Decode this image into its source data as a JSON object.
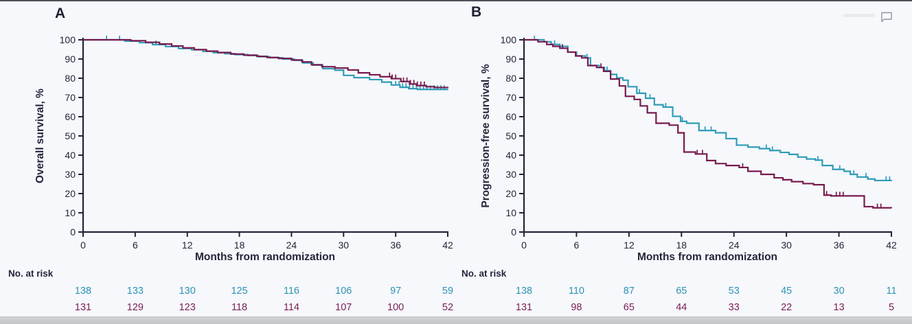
{
  "colors": {
    "teal_curve": "#2f9cb7",
    "maroon_curve": "#771a4e",
    "teal_text": "#2e93b4",
    "maroon_text": "#7c2057",
    "axis": "#23253a",
    "background": "#f6f8fb"
  },
  "icons": {
    "comment": "comment-bubble-icon"
  },
  "chart_data": [
    {
      "type": "line",
      "subtype": "kaplan-meier-step",
      "panel_label": "A",
      "ylabel": "Overall survival, %",
      "xlabel": "Months from randomization",
      "risk_label": "No. at risk",
      "xlim": [
        0,
        42
      ],
      "ylim": [
        0,
        100
      ],
      "xticks": [
        0,
        6,
        12,
        18,
        24,
        30,
        36,
        42
      ],
      "yticks": [
        0,
        10,
        20,
        30,
        40,
        50,
        60,
        70,
        80,
        90,
        100
      ],
      "grid": false,
      "legend": "none",
      "series": [
        {
          "name": "arm-teal",
          "color": "#2f9cb7",
          "steps": [
            [
              0,
              100
            ],
            [
              4.8,
              99.3
            ],
            [
              6.5,
              98.5
            ],
            [
              8,
              97.5
            ],
            [
              9.5,
              96.5
            ],
            [
              11,
              95.5
            ],
            [
              12.5,
              94.8
            ],
            [
              13.8,
              94
            ],
            [
              15,
              93.3
            ],
            [
              16.3,
              92.8
            ],
            [
              17.5,
              92.3
            ],
            [
              19,
              91.8
            ],
            [
              20.2,
              91.2
            ],
            [
              21.5,
              90.7
            ],
            [
              23,
              90
            ],
            [
              24.3,
              89.3
            ],
            [
              25.3,
              88
            ],
            [
              26.5,
              86.8
            ],
            [
              27.6,
              85
            ],
            [
              29,
              84.2
            ],
            [
              30,
              81.5
            ],
            [
              31.2,
              80.3
            ],
            [
              33,
              79.3
            ],
            [
              34.4,
              78
            ],
            [
              35.5,
              76.5
            ],
            [
              36.5,
              75.3
            ],
            [
              37.5,
              74.6
            ],
            [
              38.5,
              74.2
            ],
            [
              42,
              74
            ]
          ],
          "censors": [
            2.7,
            4.2,
            8.4,
            36.0,
            36.4,
            36.8,
            37.2,
            37.6,
            38.0,
            38.4,
            38.8,
            39.2,
            39.6,
            40.0,
            40.4,
            40.8,
            41.2,
            41.6
          ]
        },
        {
          "name": "arm-maroon",
          "color": "#771a4e",
          "steps": [
            [
              0,
              100
            ],
            [
              5.5,
              99.5
            ],
            [
              7.2,
              98.7
            ],
            [
              8.8,
              97.8
            ],
            [
              10.2,
              96.8
            ],
            [
              11.5,
              95.8
            ],
            [
              12.8,
              94.9
            ],
            [
              14.2,
              94.1
            ],
            [
              15.5,
              93.4
            ],
            [
              17,
              92.6
            ],
            [
              18.5,
              92
            ],
            [
              20,
              91.4
            ],
            [
              21.2,
              90.8
            ],
            [
              22.5,
              90.3
            ],
            [
              24,
              89.5
            ],
            [
              25.2,
              88.5
            ],
            [
              26.3,
              87
            ],
            [
              27.5,
              86
            ],
            [
              29,
              85.3
            ],
            [
              30.5,
              84.3
            ],
            [
              31.7,
              82.8
            ],
            [
              33,
              81.8
            ],
            [
              34.2,
              80.8
            ],
            [
              35.5,
              79.8
            ],
            [
              36.6,
              78.3
            ],
            [
              37.6,
              77
            ],
            [
              38.4,
              76.2
            ],
            [
              39.5,
              75.6
            ],
            [
              40.5,
              75.2
            ],
            [
              42,
              75
            ]
          ],
          "censors": [
            35.3,
            35.6,
            36.0,
            36.9,
            37.3,
            37.7,
            38.1,
            38.5,
            38.9,
            39.3
          ]
        }
      ],
      "no_at_risk": {
        "times": [
          0,
          6,
          12,
          18,
          24,
          30,
          36,
          42
        ],
        "rows": [
          {
            "name": "arm-teal",
            "color": "#2e93b4",
            "values": [
              138,
              133,
              130,
              125,
              116,
              106,
              97,
              59
            ]
          },
          {
            "name": "arm-maroon",
            "color": "#7c2057",
            "values": [
              131,
              129,
              123,
              118,
              114,
              107,
              100,
              52
            ]
          }
        ]
      }
    },
    {
      "type": "line",
      "subtype": "kaplan-meier-step",
      "panel_label": "B",
      "ylabel": "Progression-free survival, %",
      "xlabel": "Months from randomization",
      "risk_label": "No. at risk",
      "xlim": [
        0,
        42
      ],
      "ylim": [
        0,
        100
      ],
      "xticks": [
        0,
        6,
        12,
        18,
        24,
        30,
        36,
        42
      ],
      "yticks": [
        0,
        10,
        20,
        30,
        40,
        50,
        60,
        70,
        80,
        90,
        100
      ],
      "grid": false,
      "legend": "none",
      "series": [
        {
          "name": "arm-teal",
          "color": "#2f9cb7",
          "steps": [
            [
              0,
              100
            ],
            [
              2.3,
              99
            ],
            [
              3.1,
              97.6
            ],
            [
              4.1,
              96.6
            ],
            [
              5,
              93.6
            ],
            [
              6,
              91.6
            ],
            [
              7,
              90.6
            ],
            [
              7.6,
              86.6
            ],
            [
              8.6,
              85.6
            ],
            [
              9.2,
              84
            ],
            [
              9.9,
              82
            ],
            [
              10.6,
              80.2
            ],
            [
              11.3,
              79
            ],
            [
              11.9,
              75.6
            ],
            [
              12.9,
              72.2
            ],
            [
              13.9,
              69.6
            ],
            [
              14.9,
              66.2
            ],
            [
              15.9,
              65
            ],
            [
              17,
              60.2
            ],
            [
              17.9,
              57.6
            ],
            [
              18.6,
              56.6
            ],
            [
              20,
              52.8
            ],
            [
              21.9,
              51.6
            ],
            [
              23.1,
              48.6
            ],
            [
              24.3,
              45.2
            ],
            [
              25.6,
              44.2
            ],
            [
              26.9,
              43.4
            ],
            [
              28.1,
              42.4
            ],
            [
              29.3,
              41.4
            ],
            [
              30.3,
              40.4
            ],
            [
              31.3,
              39
            ],
            [
              32.3,
              38
            ],
            [
              33.3,
              37.4
            ],
            [
              34.1,
              34.6
            ],
            [
              35.3,
              32.6
            ],
            [
              36.6,
              31.6
            ],
            [
              37.3,
              30
            ],
            [
              38.1,
              28.6
            ],
            [
              39.3,
              27.6
            ],
            [
              40.1,
              26.8
            ],
            [
              42,
              26.6
            ]
          ],
          "censors": [
            1.2,
            3.5,
            7.2,
            9.5,
            13.2,
            14.4,
            16.2,
            18.1,
            20.7,
            21.4,
            27.7,
            28.4,
            33.6,
            36.1,
            37.7,
            39.1,
            41.4,
            41.8
          ]
        },
        {
          "name": "arm-maroon",
          "color": "#771a4e",
          "steps": [
            [
              0,
              100
            ],
            [
              1.6,
              99
            ],
            [
              2.6,
              97.6
            ],
            [
              3.3,
              96.6
            ],
            [
              4.1,
              95.6
            ],
            [
              5,
              93.6
            ],
            [
              5.9,
              91.6
            ],
            [
              6.6,
              90.6
            ],
            [
              7.3,
              86.6
            ],
            [
              8.3,
              85.6
            ],
            [
              9.1,
              83.6
            ],
            [
              9.9,
              79.6
            ],
            [
              10.9,
              76
            ],
            [
              11.6,
              70.6
            ],
            [
              12.6,
              69
            ],
            [
              13.3,
              65.6
            ],
            [
              14.1,
              62
            ],
            [
              15.1,
              56.6
            ],
            [
              16.6,
              55.6
            ],
            [
              17.6,
              51.6
            ],
            [
              18.3,
              41.6
            ],
            [
              19.6,
              40.6
            ],
            [
              20.9,
              37.2
            ],
            [
              21.9,
              35.6
            ],
            [
              23.1,
              34.6
            ],
            [
              24.6,
              33.6
            ],
            [
              25.6,
              31.6
            ],
            [
              27.1,
              30
            ],
            [
              28.6,
              28.2
            ],
            [
              29.6,
              27.2
            ],
            [
              30.6,
              26.2
            ],
            [
              31.9,
              25.2
            ],
            [
              33.1,
              24.6
            ],
            [
              34.3,
              19.2
            ],
            [
              35.1,
              18.8
            ],
            [
              38.9,
              13.2
            ],
            [
              39.9,
              12.6
            ],
            [
              42,
              12.4
            ]
          ],
          "censors": [
            4.4,
            8.8,
            19.8,
            20.4,
            25.0,
            34.6,
            35.7,
            36.1,
            36.5,
            40.4,
            40.8
          ]
        }
      ],
      "no_at_risk": {
        "times": [
          0,
          6,
          12,
          18,
          24,
          30,
          36,
          42
        ],
        "rows": [
          {
            "name": "arm-teal",
            "color": "#2e93b4",
            "values": [
              138,
              110,
              87,
              65,
              53,
              45,
              30,
              11
            ]
          },
          {
            "name": "arm-maroon",
            "color": "#7c2057",
            "values": [
              131,
              98,
              65,
              44,
              33,
              22,
              13,
              5
            ]
          }
        ]
      }
    }
  ]
}
